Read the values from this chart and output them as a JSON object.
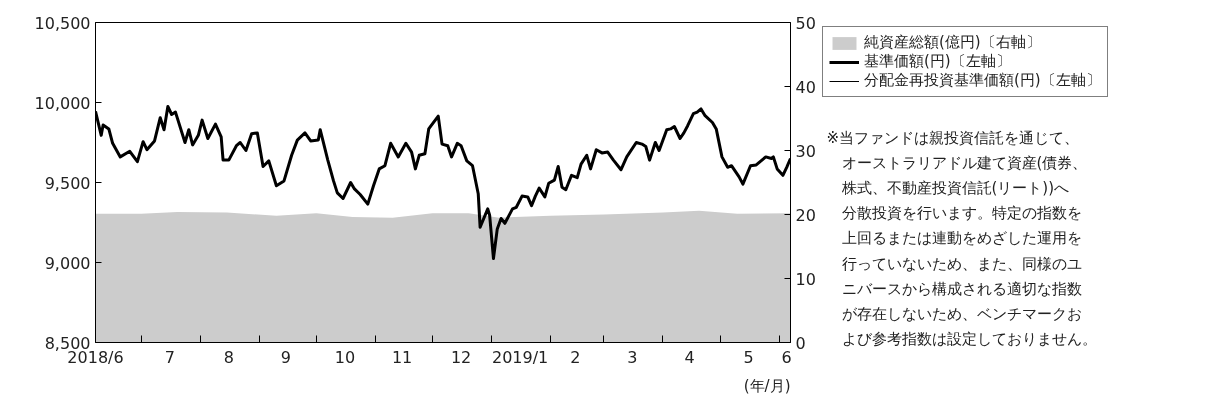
{
  "chart_data": {
    "type": "line",
    "x": [
      "2018-06-07",
      "2018-06-10",
      "2018-06-11",
      "2018-06-14",
      "2018-06-16",
      "2018-06-20",
      "2018-06-25",
      "2018-06-29",
      "2018-07-02",
      "2018-07-04",
      "2018-07-08",
      "2018-07-11",
      "2018-07-13",
      "2018-07-15",
      "2018-07-17",
      "2018-07-19",
      "2018-07-24",
      "2018-07-26",
      "2018-07-28",
      "2018-07-31",
      "2018-08-02",
      "2018-08-05",
      "2018-08-09",
      "2018-08-12",
      "2018-08-13",
      "2018-08-16",
      "2018-08-20",
      "2018-08-22",
      "2018-08-25",
      "2018-08-28",
      "2018-08-31",
      "2018-09-03",
      "2018-09-06",
      "2018-09-10",
      "2018-09-14",
      "2018-09-18",
      "2018-09-21",
      "2018-09-25",
      "2018-09-28",
      "2018-10-02",
      "2018-10-03",
      "2018-10-07",
      "2018-10-10",
      "2018-10-12",
      "2018-10-15",
      "2018-10-19",
      "2018-10-21",
      "2018-10-24",
      "2018-10-28",
      "2018-10-31",
      "2018-11-03",
      "2018-11-06",
      "2018-11-09",
      "2018-11-13",
      "2018-11-17",
      "2018-11-20",
      "2018-11-22",
      "2018-11-24",
      "2018-11-27",
      "2018-11-29",
      "2018-12-04",
      "2018-12-06",
      "2018-12-09",
      "2018-12-11",
      "2018-12-14",
      "2018-12-16",
      "2018-12-19",
      "2018-12-22",
      "2018-12-25",
      "2018-12-26",
      "2018-12-30",
      "2018-12-31",
      "2019-01-02",
      "2019-01-04",
      "2019-01-06",
      "2019-01-08",
      "2019-01-12",
      "2019-01-14",
      "2019-01-17",
      "2019-01-20",
      "2019-01-22",
      "2019-01-24",
      "2019-01-26",
      "2019-01-29",
      "2019-01-31",
      "2019-02-03",
      "2019-02-05",
      "2019-02-07",
      "2019-02-09",
      "2019-02-12",
      "2019-02-15",
      "2019-02-17",
      "2019-02-20",
      "2019-02-22",
      "2019-02-25",
      "2019-02-28",
      "2019-03-03",
      "2019-03-06",
      "2019-03-10",
      "2019-03-13",
      "2019-03-18",
      "2019-03-21",
      "2019-03-23",
      "2019-03-25",
      "2019-03-28",
      "2019-03-30",
      "2019-04-03",
      "2019-04-05",
      "2019-04-07",
      "2019-04-10",
      "2019-04-12",
      "2019-04-14",
      "2019-04-17",
      "2019-04-19",
      "2019-04-21",
      "2019-04-23",
      "2019-04-27",
      "2019-04-29",
      "2019-05-02",
      "2019-05-05",
      "2019-05-07",
      "2019-05-11",
      "2019-05-13",
      "2019-05-17",
      "2019-05-20",
      "2019-05-23",
      "2019-05-25",
      "2019-05-28",
      "2019-05-29",
      "2019-05-31",
      "2019-06-03",
      "2019-06-05",
      "2019-06-07"
    ],
    "series": [
      {
        "name": "純資産総額(億円)〔右軸〕",
        "type": "area",
        "axis": "y2",
        "color": "#cccccc",
        "x": [
          "2018-06-07",
          "2018-07-01",
          "2018-07-20",
          "2018-08-15",
          "2018-09-10",
          "2018-10-01",
          "2018-10-20",
          "2018-11-10",
          "2018-12-01",
          "2018-12-20",
          "2019-01-05",
          "2019-02-01",
          "2019-03-01",
          "2019-04-01",
          "2019-04-20",
          "2019-05-10",
          "2019-06-07"
        ],
        "values": [
          20.1,
          20.1,
          20.4,
          20.3,
          19.8,
          20.2,
          19.6,
          19.5,
          20.2,
          20.2,
          19.5,
          19.8,
          20.0,
          20.3,
          20.6,
          20.1,
          20.2
        ]
      },
      {
        "name": "基準価額(円)〔左軸〕",
        "color": "#000000",
        "values": [
          9945,
          9795,
          9860,
          9835,
          9745,
          9660,
          9695,
          9630,
          9755,
          9705,
          9760,
          9905,
          9830,
          9975,
          9925,
          9940,
          9750,
          9830,
          9735,
          9795,
          9890,
          9775,
          9865,
          9785,
          9640,
          9640,
          9730,
          9750,
          9700,
          9805,
          9810,
          9600,
          9635,
          9480,
          9510,
          9670,
          9765,
          9810,
          9760,
          9765,
          9830,
          9640,
          9510,
          9435,
          9400,
          9500,
          9460,
          9425,
          9365,
          9480,
          9585,
          9605,
          9745,
          9660,
          9745,
          9690,
          9585,
          9670,
          9680,
          9835,
          9915,
          9740,
          9730,
          9660,
          9745,
          9730,
          9635,
          9605,
          9430,
          9220,
          9335,
          9295,
          9025,
          9210,
          9275,
          9245,
          9335,
          9345,
          9415,
          9410,
          9355,
          9415,
          9465,
          9410,
          9495,
          9515,
          9600,
          9470,
          9455,
          9545,
          9530,
          9615,
          9670,
          9585,
          9705,
          9685,
          9690,
          9640,
          9580,
          9660,
          9750,
          9740,
          9725,
          9640,
          9750,
          9700,
          9830,
          9835,
          9850,
          9775,
          9810,
          9855,
          9930,
          9940,
          9960,
          9920,
          9875,
          9835,
          9660,
          9595,
          9605,
          9535,
          9490,
          9605,
          9610,
          9640,
          9660,
          9650,
          9660,
          9585,
          9545,
          9595,
          9650
        ]
      },
      {
        "name": "分配金再投資基準価額(円)〔左軸〕",
        "color": "#000000",
        "values": [
          null,
          null,
          null,
          null,
          null,
          null,
          null,
          null,
          null,
          null,
          null,
          null,
          null,
          null,
          null,
          null,
          null,
          null,
          null,
          null,
          null,
          null,
          null,
          null,
          null,
          null,
          null,
          null,
          null,
          null,
          null,
          null,
          null,
          null,
          null,
          null,
          null,
          null,
          null,
          null,
          null,
          null,
          null,
          null,
          null,
          null,
          null,
          null,
          null,
          null,
          null,
          null,
          null,
          null,
          null,
          null,
          null,
          null,
          null,
          null,
          null,
          null,
          null,
          null,
          null,
          null,
          null,
          null,
          null,
          null,
          null,
          null,
          null,
          null,
          null,
          null,
          null,
          null,
          null,
          null,
          null,
          null,
          null,
          null,
          null,
          null,
          null,
          null,
          null,
          null,
          null,
          null,
          null,
          null,
          null,
          null,
          null,
          null,
          null,
          null,
          null,
          null,
          null,
          null,
          null,
          null,
          null,
          null,
          null,
          null,
          null,
          null,
          null,
          null,
          null,
          null,
          null,
          null,
          null,
          null,
          null,
          null,
          null,
          null,
          null,
          null,
          null,
          null,
          null,
          null,
          null,
          null,
          null
        ]
      }
    ],
    "xlim": [
      "2018-06-07",
      "2019-06-07"
    ],
    "xticks": [
      {
        "value": "2018-06-07",
        "label": "2018/6"
      },
      {
        "value": "2018-07-01",
        "label": null
      },
      {
        "value": "2018-07-16",
        "label": "7"
      },
      {
        "value": "2018-08-01",
        "label": null
      },
      {
        "value": "2018-08-16",
        "label": "8"
      },
      {
        "value": "2018-09-01",
        "label": null
      },
      {
        "value": "2018-09-15",
        "label": "9"
      },
      {
        "value": "2018-10-01",
        "label": null
      },
      {
        "value": "2018-10-16",
        "label": "10"
      },
      {
        "value": "2018-11-01",
        "label": null
      },
      {
        "value": "2018-11-15",
        "label": "11"
      },
      {
        "value": "2018-12-01",
        "label": null
      },
      {
        "value": "2018-12-16",
        "label": "12"
      },
      {
        "value": "2019-01-01",
        "label": null
      },
      {
        "value": "2019-01-16",
        "label": "2019/1"
      },
      {
        "value": "2019-02-01",
        "label": null
      },
      {
        "value": "2019-02-14",
        "label": "2"
      },
      {
        "value": "2019-03-01",
        "label": null
      },
      {
        "value": "2019-03-16",
        "label": "3"
      },
      {
        "value": "2019-04-01",
        "label": null
      },
      {
        "value": "2019-04-15",
        "label": "4"
      },
      {
        "value": "2019-05-01",
        "label": null
      },
      {
        "value": "2019-05-16",
        "label": "5"
      },
      {
        "value": "2019-06-01",
        "label": null
      },
      {
        "value": "2019-06-05",
        "label": "6"
      }
    ],
    "ylim": [
      8500,
      10500
    ],
    "yticks": [
      {
        "value": 8500,
        "label": "8,500"
      },
      {
        "value": 9000,
        "label": "9,000"
      },
      {
        "value": 9500,
        "label": "9,500"
      },
      {
        "value": 10000,
        "label": "10,000"
      },
      {
        "value": 10500,
        "label": "10,500"
      }
    ],
    "y2lim": [
      0,
      50
    ],
    "y2ticks": [
      0,
      10,
      20,
      30,
      40,
      50
    ],
    "grid": false,
    "legend": "top right",
    "annotations": [
      "(年/月)",
      "※当ファンドは親投資信託を通じて、オーストラリアドル建て資産(債券、株式、不動産投資信託(リート))へ分散投資を行います。特定の指数を上回るまたは連動をめざした運用を行っていないため、また、同様のユニバースから構成される適切な指数が存在しないため、ベンチマークおよび参考指数は設定しておりません。"
    ]
  }
}
